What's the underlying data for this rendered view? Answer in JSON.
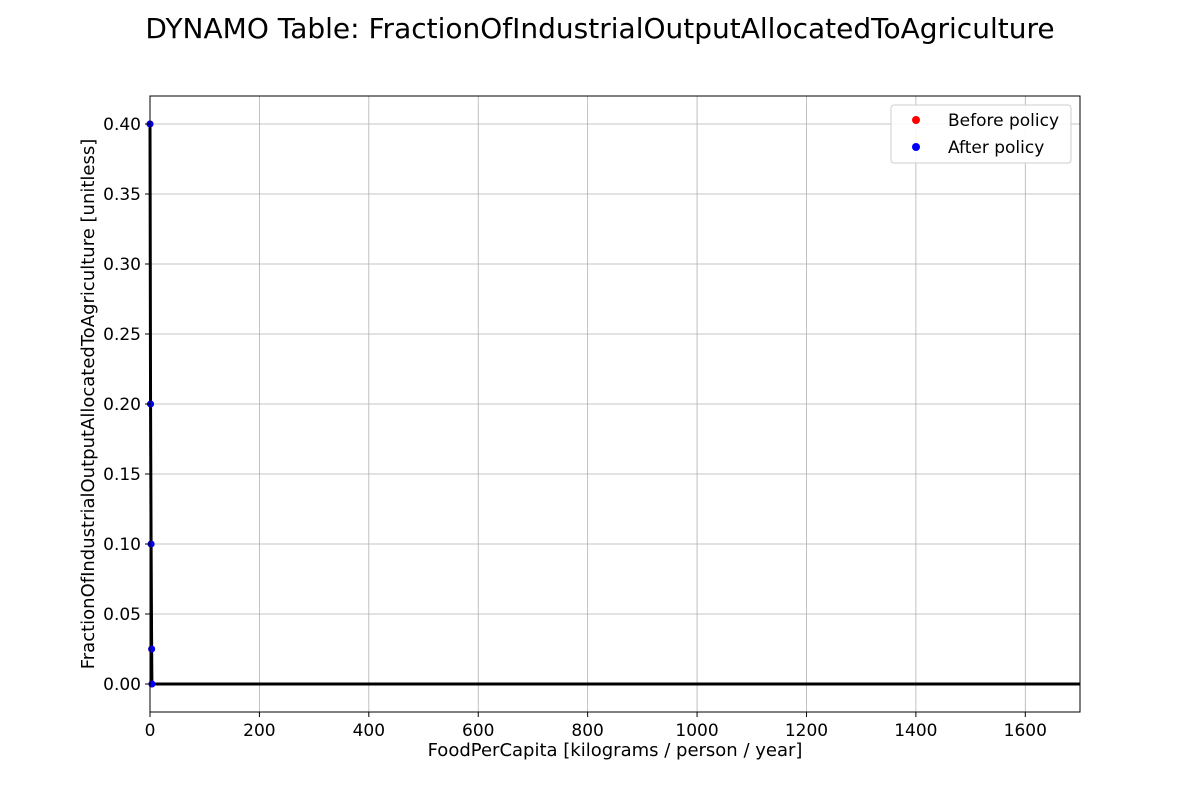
{
  "chart_data": {
    "type": "line",
    "title": "DYNAMO Table: FractionOfIndustrialOutputAllocatedToAgriculture",
    "xlabel": "FoodPerCapita [kilograms / person / year]",
    "ylabel": "FractionOfIndustrialOutputAllocatedToAgriculture [unitless]",
    "xlim": [
      0,
      1700
    ],
    "ylim": [
      -0.02,
      0.42
    ],
    "x_ticks": [
      0,
      200,
      400,
      600,
      800,
      1000,
      1200,
      1400,
      1600
    ],
    "y_ticks": [
      0.0,
      0.05,
      0.1,
      0.15,
      0.2,
      0.25,
      0.3,
      0.35,
      0.4
    ],
    "x_tick_labels": [
      "0",
      "200",
      "400",
      "600",
      "800",
      "1000",
      "1200",
      "1400",
      "1600"
    ],
    "y_tick_labels": [
      "0.00",
      "0.05",
      "0.10",
      "0.15",
      "0.20",
      "0.25",
      "0.30",
      "0.35",
      "0.40"
    ],
    "grid": true,
    "legend_position": "top-right",
    "line": {
      "color": "#000000",
      "x": [
        0,
        1,
        2,
        3,
        3.5,
        4,
        17,
        1700
      ],
      "y": [
        0.4,
        0.2,
        0.1,
        0.025,
        0.0,
        0.0,
        0.0,
        0.0
      ]
    },
    "series": [
      {
        "name": "Before policy",
        "color": "#ff0000",
        "marker": "circle",
        "x": [
          0,
          1,
          2,
          3,
          3.5
        ],
        "y": [
          0.4,
          0.2,
          0.1,
          0.025,
          0.0
        ]
      },
      {
        "name": "After policy",
        "color": "#0000ff",
        "marker": "circle",
        "x": [
          0,
          1,
          2,
          3,
          3.5
        ],
        "y": [
          0.4,
          0.2,
          0.1,
          0.025,
          0.0
        ]
      }
    ]
  }
}
